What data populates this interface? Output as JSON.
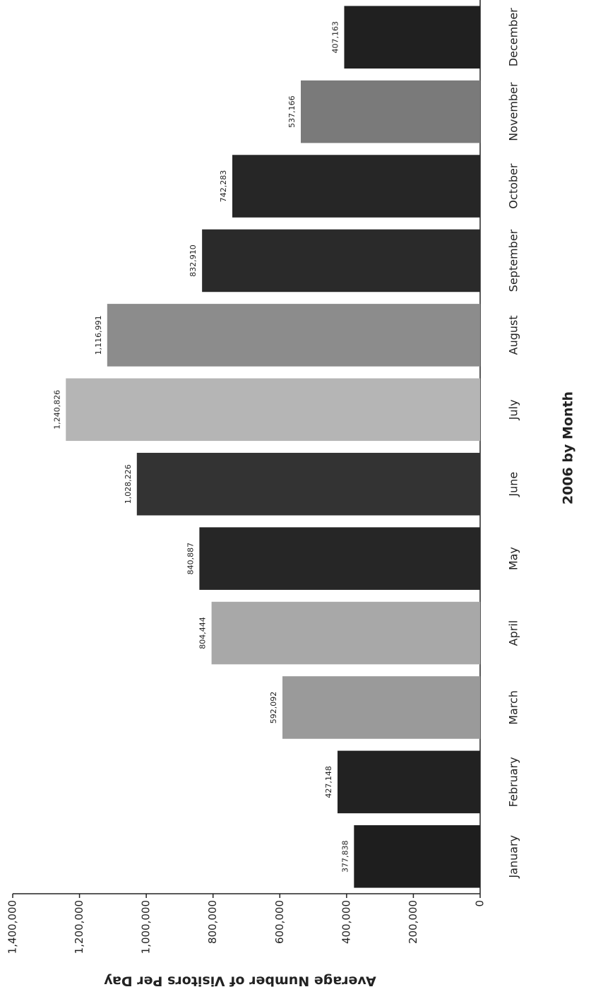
{
  "chart_data": {
    "type": "bar",
    "y_label": "Average Number of Visitors Per Day",
    "x_label": "2006 by Month",
    "categories": [
      "January",
      "February",
      "March",
      "April",
      "May",
      "June",
      "July",
      "August",
      "September",
      "October",
      "November",
      "December"
    ],
    "values": [
      377838,
      427148,
      592092,
      804444,
      840887,
      1028226,
      1240826,
      1116991,
      832910,
      742283,
      537166,
      407163
    ],
    "value_labels": [
      "377,838",
      "427,148",
      "592,092",
      "804,444",
      "840,887",
      "1,028,226",
      "1,240,826",
      "1,116,991",
      "832,910",
      "742,283",
      "537,166",
      "407,163"
    ],
    "colors": [
      "#1e1e1e",
      "#222222",
      "#9a9a9a",
      "#a8a8a8",
      "#262626",
      "#333333",
      "#b5b5b5",
      "#8c8c8c",
      "#2a2a2a",
      "#262626",
      "#7a7a7a",
      "#202020"
    ],
    "ylim": [
      0,
      1400000
    ],
    "yticks": [
      0,
      {
        "value": 200000,
        "label": "200,000"
      },
      {
        "value": 400000,
        "label": "400,000"
      },
      {
        "value": 600000,
        "label": "600,000"
      },
      {
        "value": 800000,
        "label": "800,000"
      },
      {
        "value": 1000000,
        "label": "1,000,000"
      },
      {
        "value": 1200000,
        "label": "1,200,000"
      },
      {
        "value": 1400000,
        "label": "1,400,000"
      }
    ]
  }
}
